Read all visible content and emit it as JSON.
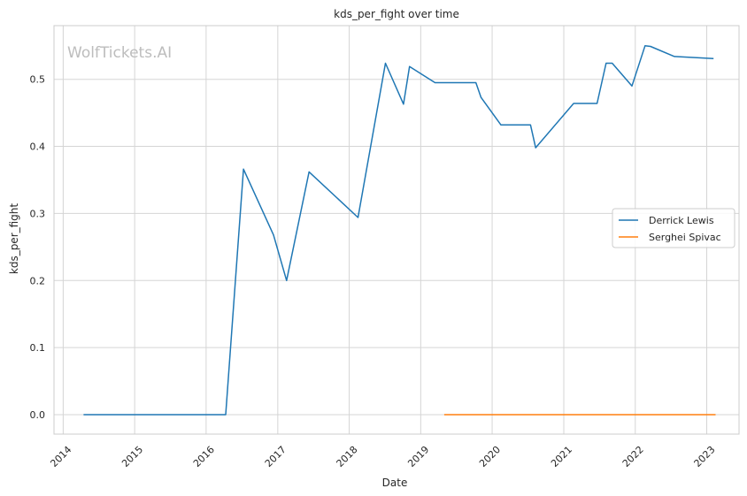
{
  "watermark": "WolfTickets.AI",
  "chart_data": {
    "type": "line",
    "title": "kds_per_fight over time",
    "xlabel": "Date",
    "ylabel": "kds_per_fight",
    "xlim": [
      "2013-11-15",
      "2023-06-15"
    ],
    "ylim": [
      -0.029,
      0.58
    ],
    "grid": true,
    "legend_position": "center-right",
    "x_ticks": [
      "2014",
      "2015",
      "2016",
      "2017",
      "2018",
      "2019",
      "2020",
      "2021",
      "2022",
      "2023"
    ],
    "y_ticks": [
      "0.0",
      "0.1",
      "0.2",
      "0.3",
      "0.4",
      "0.5"
    ],
    "series": [
      {
        "name": "Derrick Lewis",
        "color": "#1f77b4",
        "points": [
          {
            "x": "2014-04-15",
            "y": 0.0
          },
          {
            "x": "2016-04-10",
            "y": 0.0
          },
          {
            "x": "2016-07-10",
            "y": 0.366
          },
          {
            "x": "2016-12-10",
            "y": 0.268
          },
          {
            "x": "2017-02-15",
            "y": 0.2
          },
          {
            "x": "2017-06-10",
            "y": 0.362
          },
          {
            "x": "2018-02-15",
            "y": 0.294
          },
          {
            "x": "2018-07-05",
            "y": 0.524
          },
          {
            "x": "2018-10-05",
            "y": 0.463
          },
          {
            "x": "2018-11-05",
            "y": 0.519
          },
          {
            "x": "2019-03-15",
            "y": 0.495
          },
          {
            "x": "2019-10-10",
            "y": 0.495
          },
          {
            "x": "2019-11-05",
            "y": 0.473
          },
          {
            "x": "2020-02-15",
            "y": 0.432
          },
          {
            "x": "2020-07-15",
            "y": 0.432
          },
          {
            "x": "2020-08-10",
            "y": 0.398
          },
          {
            "x": "2021-02-20",
            "y": 0.464
          },
          {
            "x": "2021-06-20",
            "y": 0.464
          },
          {
            "x": "2021-08-05",
            "y": 0.524
          },
          {
            "x": "2021-09-05",
            "y": 0.524
          },
          {
            "x": "2021-12-15",
            "y": 0.49
          },
          {
            "x": "2022-02-20",
            "y": 0.55
          },
          {
            "x": "2022-03-20",
            "y": 0.549
          },
          {
            "x": "2022-07-20",
            "y": 0.534
          },
          {
            "x": "2023-02-05",
            "y": 0.531
          }
        ]
      },
      {
        "name": "Serghei Spivac",
        "color": "#ff7f0e",
        "points": [
          {
            "x": "2019-05-01",
            "y": 0.0
          },
          {
            "x": "2023-02-15",
            "y": 0.0
          }
        ]
      }
    ]
  }
}
